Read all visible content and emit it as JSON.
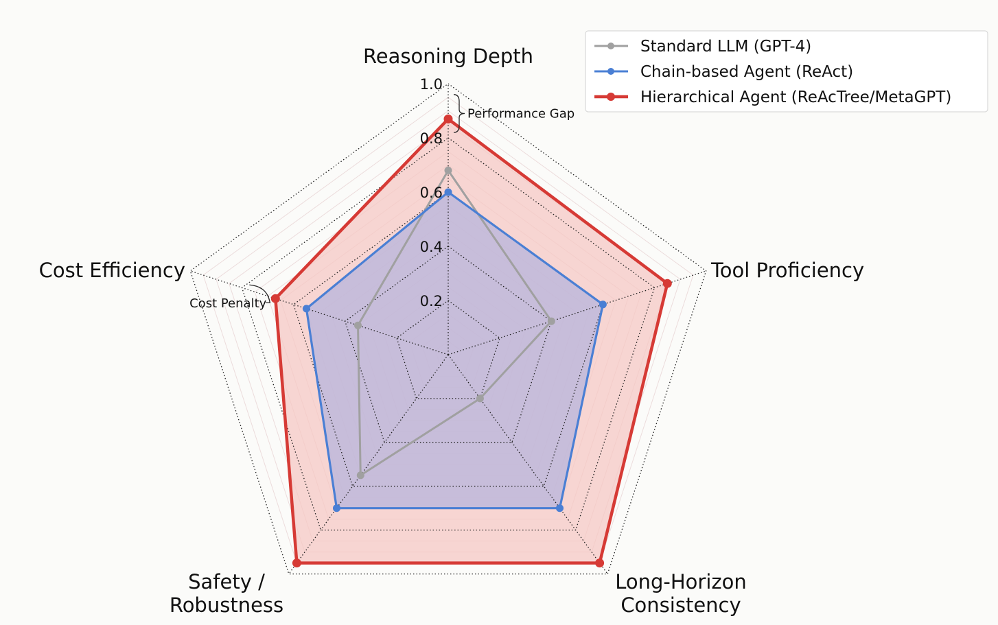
{
  "chart_data": {
    "type": "radar",
    "axes": [
      "Reasoning Depth",
      "Tool Proficiency",
      "Long-Horizon Consistency",
      "Safety / Robustness",
      "Cost Efficiency"
    ],
    "axis_label_lines": [
      [
        "Reasoning Depth"
      ],
      [
        "Tool Proficiency"
      ],
      [
        "Long-Horizon",
        "Consistency"
      ],
      [
        "Safety /",
        "Robustness"
      ],
      [
        "Cost Efficiency"
      ]
    ],
    "rlim": [
      0,
      1.0
    ],
    "ticks": [
      0.2,
      0.4,
      0.6,
      0.8,
      1.0
    ],
    "tick_labels": [
      "0.2",
      "0.4",
      "0.6",
      "0.8",
      "1.0"
    ],
    "series": [
      {
        "name": "Standard LLM (GPT-4)",
        "color": "#a0a0a0",
        "values": [
          0.68,
          0.4,
          0.2,
          0.55,
          0.35
        ],
        "fill": false
      },
      {
        "name": "Chain-based Agent (ReAct)",
        "color": "#4a7fd4",
        "values": [
          0.6,
          0.6,
          0.7,
          0.7,
          0.55
        ],
        "fill": true,
        "fill_color": "#b7b4dc"
      },
      {
        "name": "Hierarchical Agent (ReAcTree/MetaGPT)",
        "color": "#d63a35",
        "values": [
          0.87,
          0.85,
          0.95,
          0.95,
          0.67
        ],
        "fill": true,
        "fill_color": "#f6c8c4"
      }
    ],
    "annotations": [
      {
        "text": "Performance Gap",
        "axis": "Reasoning Depth"
      },
      {
        "text": "Cost Penalty",
        "axis": "Cost Efficiency"
      }
    ],
    "legend_position": "top-right",
    "grid": true
  }
}
